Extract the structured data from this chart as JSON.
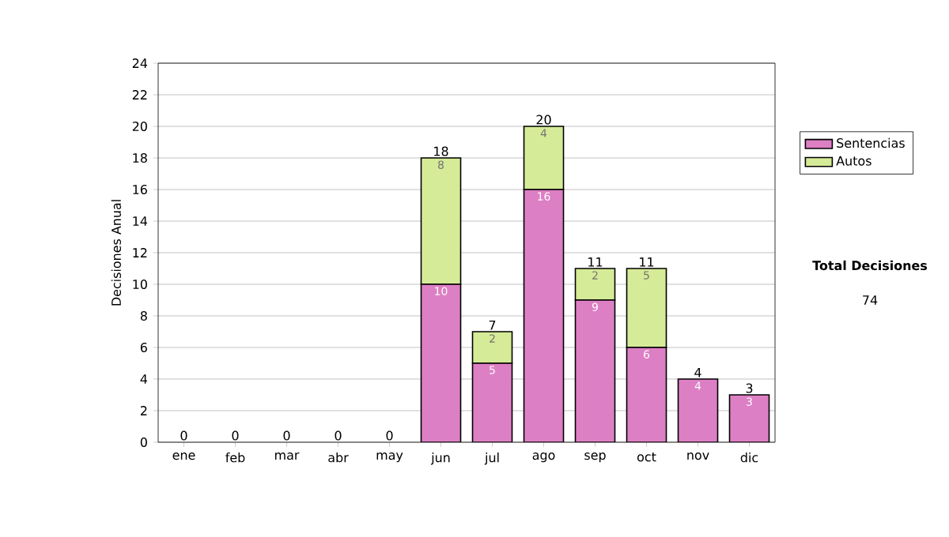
{
  "chart_data": {
    "type": "bar",
    "stacked": true,
    "ylabel": "Decisiones Anual",
    "categories": [
      "ene",
      "feb",
      "mar",
      "abr",
      "may",
      "jun",
      "jul",
      "ago",
      "sep",
      "oct",
      "nov",
      "dic"
    ],
    "series": [
      {
        "name": "Sentencias",
        "color": "#dd7fc4",
        "values": [
          0,
          0,
          0,
          0,
          0,
          10,
          5,
          16,
          9,
          6,
          4,
          3
        ],
        "value_labels": [
          null,
          null,
          null,
          null,
          null,
          "10",
          "5",
          "16",
          "9",
          "6",
          "4",
          "3"
        ]
      },
      {
        "name": "Autos",
        "color": "#d6eb97",
        "values": [
          0,
          0,
          0,
          0,
          0,
          8,
          2,
          4,
          2,
          5,
          0,
          0
        ],
        "value_labels": [
          null,
          null,
          null,
          null,
          null,
          "8",
          "2",
          "4",
          "2",
          "5",
          null,
          null
        ]
      }
    ],
    "totals": [
      "0",
      "0",
      "0",
      "0",
      "0",
      "18",
      "7",
      "20",
      "11",
      "11",
      "4",
      "3"
    ],
    "ylim": [
      0,
      24
    ],
    "yticks": [
      0,
      2,
      4,
      6,
      8,
      10,
      12,
      14,
      16,
      18,
      20,
      22,
      24
    ],
    "grid": "y",
    "legend": "right",
    "annotations": [
      "Total Decisiones",
      "74"
    ]
  }
}
